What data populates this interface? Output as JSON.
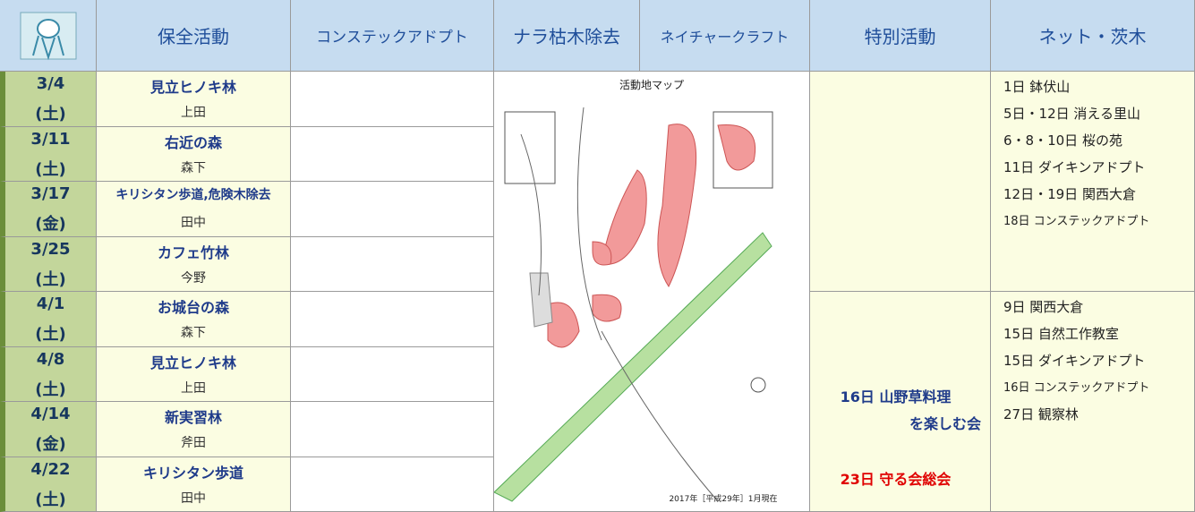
{
  "header": {
    "columns": [
      "保全活動",
      "コンステックアドプト",
      "ナラ枯木除去",
      "ネイチャークラフト",
      "特別活動",
      "ネット・茨木"
    ]
  },
  "rows": [
    {
      "date": "3/4",
      "day": "(土)",
      "place": "見立ヒノキ林",
      "person": "上田"
    },
    {
      "date": "3/11",
      "day": "(土)",
      "place": "右近の森",
      "person": "森下"
    },
    {
      "date": "3/17",
      "day": "(金)",
      "place": "キリシタン歩道,危険木除去",
      "person": "田中"
    },
    {
      "date": "3/25",
      "day": "(土)",
      "place": "カフェ竹林",
      "person": "今野"
    },
    {
      "date": "4/1",
      "day": "(土)",
      "place": "お城台の森",
      "person": "森下"
    },
    {
      "date": "4/8",
      "day": "(土)",
      "place": "見立ヒノキ林",
      "person": "上田"
    },
    {
      "date": "4/14",
      "day": "(金)",
      "place": "新実習林",
      "person": "斧田"
    },
    {
      "date": "4/22",
      "day": "(土)",
      "place": "キリシタン歩道",
      "person": "田中"
    }
  ],
  "map": {
    "title": "活動地マップ",
    "note": "2017年［平成29年］1月現在"
  },
  "special": [
    [],
    [
      "16日 山野草料理",
      "を楽しむ会",
      "23日 守る会総会"
    ]
  ],
  "net": [
    [
      "1日 鉢伏山",
      "5日・12日 消える里山",
      "6・8・10日 桜の苑",
      "11日 ダイキンアドプト",
      "12日・19日 関西大倉",
      "18日 コンステックアドプト"
    ],
    [
      "9日 関西大倉",
      "15日 自然工作教室",
      "15日 ダイキンアドプト",
      "16日 コンステックアドプト",
      "27日 観察林"
    ]
  ]
}
